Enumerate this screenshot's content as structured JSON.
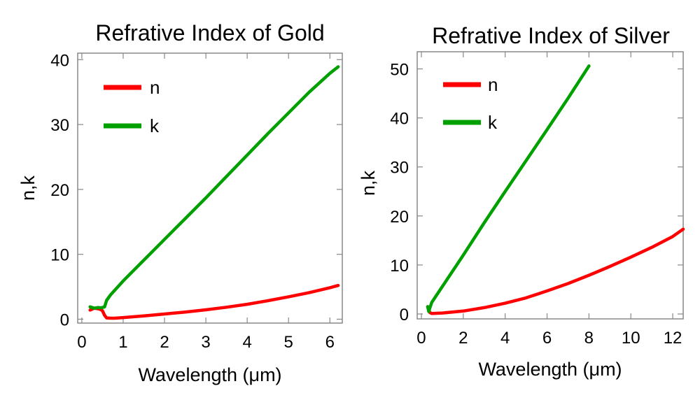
{
  "chart_data": [
    {
      "type": "line",
      "title": "Refrative Index of Gold",
      "xlabel": "Wavelength (μm)",
      "ylabel": "n,k",
      "xlim": [
        -0.1,
        6.3
      ],
      "ylim": [
        -0.6,
        41.0
      ],
      "xticks": [
        0,
        1,
        2,
        3,
        4,
        5,
        6
      ],
      "yticks": [
        0,
        10,
        20,
        30,
        40
      ],
      "grid": false,
      "legend_position": "top-left",
      "series": [
        {
          "name": "n",
          "color": "#ff0000",
          "x": [
            0.2,
            0.3,
            0.4,
            0.45,
            0.5,
            0.55,
            0.6,
            0.7,
            0.8,
            1.0,
            1.5,
            2.0,
            2.5,
            3.0,
            3.5,
            4.0,
            4.5,
            5.0,
            5.5,
            6.0,
            6.2
          ],
          "y": [
            1.4,
            1.7,
            1.6,
            1.5,
            1.3,
            0.6,
            0.2,
            0.15,
            0.15,
            0.25,
            0.5,
            0.8,
            1.1,
            1.45,
            1.85,
            2.3,
            2.85,
            3.45,
            4.1,
            4.85,
            5.2
          ]
        },
        {
          "name": "k",
          "color": "#00a000",
          "x": [
            0.2,
            0.3,
            0.4,
            0.45,
            0.5,
            0.55,
            0.6,
            0.7,
            0.8,
            1.0,
            1.5,
            2.0,
            2.5,
            3.0,
            3.5,
            4.0,
            4.5,
            5.0,
            5.5,
            6.0,
            6.2
          ],
          "y": [
            1.9,
            1.7,
            1.8,
            1.75,
            1.8,
            1.9,
            2.9,
            3.8,
            4.5,
            5.9,
            9.1,
            12.3,
            15.5,
            18.7,
            22.0,
            25.3,
            28.6,
            31.8,
            35.0,
            37.9,
            38.9
          ]
        }
      ]
    },
    {
      "type": "line",
      "title": "Refrative Index of Silver",
      "xlabel": "Wavelength (μm)",
      "ylabel": "n,k",
      "xlim": [
        -0.2,
        12.5
      ],
      "ylim": [
        -1.0,
        53.5
      ],
      "xticks": [
        0,
        2,
        4,
        6,
        8,
        10,
        12
      ],
      "yticks": [
        0,
        10,
        20,
        30,
        40,
        50
      ],
      "grid": false,
      "legend_position": "top-left",
      "series": [
        {
          "name": "n",
          "color": "#ff0000",
          "x": [
            0.3,
            0.4,
            0.5,
            1.0,
            2.0,
            3.0,
            4.0,
            5.0,
            6.0,
            7.0,
            8.0,
            9.0,
            10.0,
            11.0,
            12.0,
            12.5
          ],
          "y": [
            1.5,
            0.3,
            0.1,
            0.2,
            0.6,
            1.3,
            2.2,
            3.3,
            4.7,
            6.2,
            7.9,
            9.7,
            11.6,
            13.6,
            15.8,
            17.3
          ]
        },
        {
          "name": "k",
          "color": "#00a000",
          "x": [
            0.3,
            0.35,
            0.4,
            0.5,
            1.0,
            2.0,
            3.0,
            4.0,
            5.0,
            6.0,
            7.0,
            8.0
          ],
          "y": [
            1.5,
            0.5,
            1.2,
            2.4,
            5.6,
            12.0,
            18.6,
            25.0,
            31.3,
            37.6,
            44.0,
            50.6
          ]
        }
      ]
    }
  ]
}
